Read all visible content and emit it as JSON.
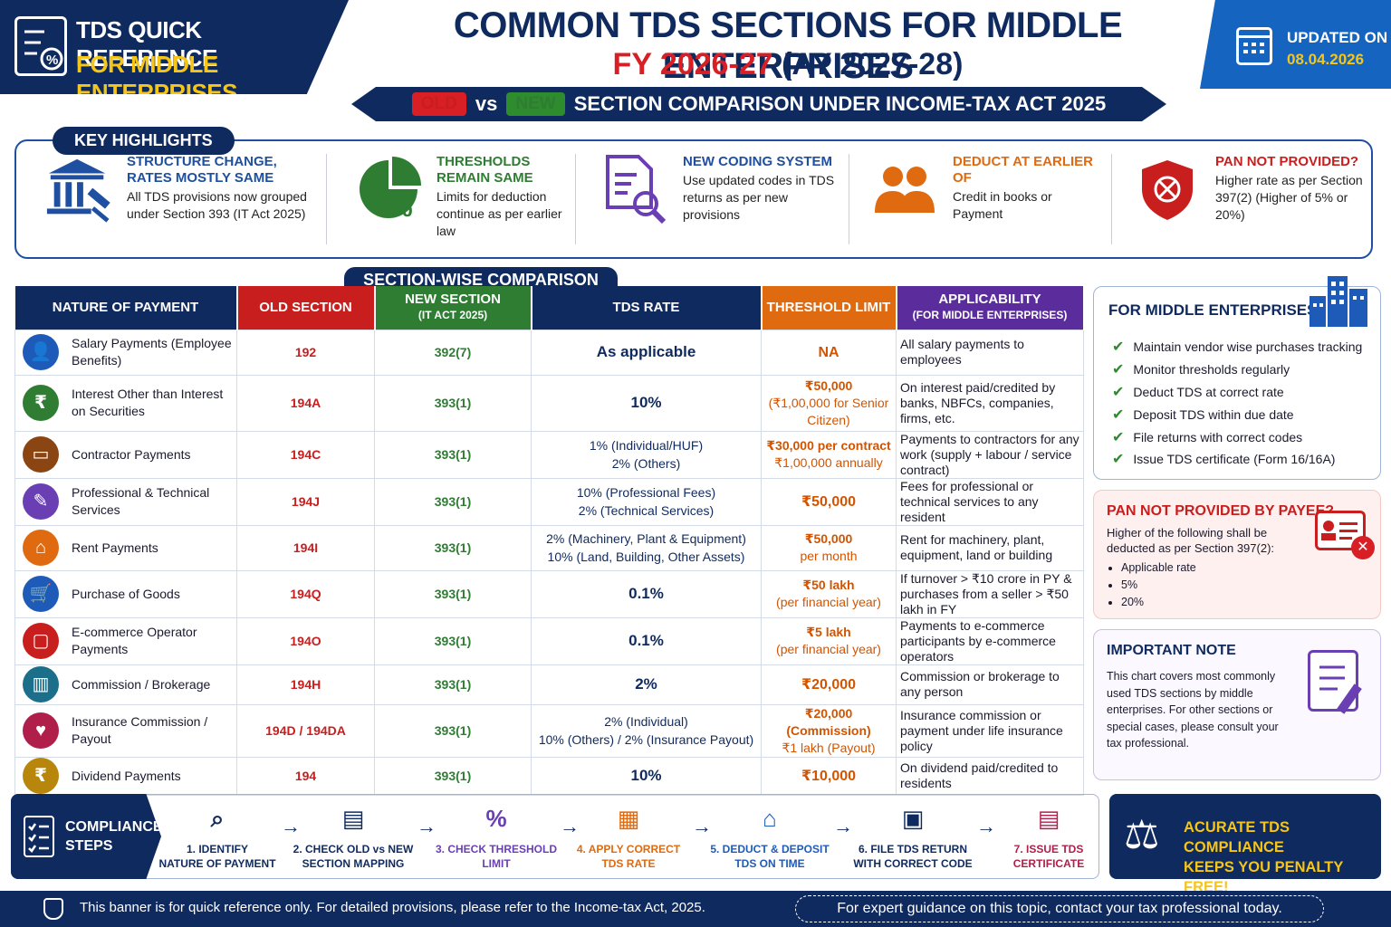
{
  "header": {
    "badge_line1": "TDS QUICK REFERENCE",
    "badge_line2": "FOR MIDDLE ENTERPRISES",
    "title": "COMMON TDS SECTIONS FOR MIDDLE ENTERPRISES",
    "fy": "FY 2026-27",
    "ay": "(AY 2027-28)",
    "old_tag": "OLD",
    "vs": "vs",
    "new_tag": "NEW",
    "comparison": "SECTION COMPARISON UNDER INCOME-TAX ACT 2025",
    "updated_label": "UPDATED ON",
    "updated_date": "08.04.2026"
  },
  "highlights": {
    "title": "KEY HIGHLIGHTS",
    "items": [
      {
        "icon": "courthouse-gavel-icon",
        "title": "STRUCTURE CHANGE, RATES MOSTLY SAME",
        "desc": "All TDS provisions now grouped under Section 393 (IT Act 2025)",
        "color": "#1e4fa0"
      },
      {
        "icon": "pie-percent-icon",
        "title": "THRESHOLDS REMAIN SAME",
        "desc": "Limits for deduction continue as per earlier law",
        "color": "#2e7d32"
      },
      {
        "icon": "document-search-icon",
        "title": "NEW CODING SYSTEM",
        "desc": "Use updated codes in TDS returns as per new provisions",
        "color": "#1e4fa0"
      },
      {
        "icon": "users-icon",
        "title": "DEDUCT AT EARLIER OF",
        "desc": "Credit in books or Payment",
        "color": "#e06a10"
      },
      {
        "icon": "shield-badge-icon",
        "title": "PAN NOT PROVIDED?",
        "desc": "Higher rate as per Section 397(2) (Higher of 5% or 20%)",
        "color": "#c81e1e"
      }
    ]
  },
  "table": {
    "title": "SECTION-WISE COMPARISON",
    "headers": {
      "nature": "NATURE OF PAYMENT",
      "old": "OLD SECTION",
      "new": "NEW SECTION",
      "new_sub": "(IT ACT 2025)",
      "rate": "TDS RATE",
      "threshold": "THRESHOLD LIMIT",
      "app": "APPLICABILITY",
      "app_sub": "(FOR MIDDLE ENTERPRISES)"
    },
    "rows": [
      {
        "icon": "employee-icon",
        "color": "#1e5bb8",
        "nature": "Salary Payments (Employee Benefits)",
        "old": "192",
        "new": "392(7)",
        "rate1": "As applicable",
        "rate2": "",
        "thr1": "NA",
        "thr2": "",
        "app": "All salary payments to employees"
      },
      {
        "icon": "rupee-hand-icon",
        "color": "#2e7d32",
        "nature": "Interest Other than Interest on Securities",
        "old": "194A",
        "new": "393(1)",
        "rate1": "10%",
        "rate2": "",
        "thr1": "₹50,000",
        "thr2": "(₹1,00,000 for Senior Citizen)",
        "app": "On interest paid/credited by banks, NBFCs, companies, firms, etc."
      },
      {
        "icon": "briefcase-icon",
        "color": "#8b4513",
        "nature": "Contractor Payments",
        "old": "194C",
        "new": "393(1)",
        "rate1": "1% (Individual/HUF)",
        "rate2": "2% (Others)",
        "thr1": "₹30,000 per contract",
        "thr2": "₹1,00,000 annually",
        "app": "Payments to contractors for any work (supply + labour / service contract)"
      },
      {
        "icon": "professional-icon",
        "color": "#6a3fb4",
        "nature": "Professional & Technical Services",
        "old": "194J",
        "new": "393(1)",
        "rate1": "10% (Professional Fees)",
        "rate2": "2% (Technical Services)",
        "thr1": "₹50,000",
        "thr2": "",
        "app": "Fees for professional or technical services to any resident"
      },
      {
        "icon": "house-icon",
        "color": "#e06a10",
        "nature": "Rent Payments",
        "old": "194I",
        "new": "393(1)",
        "rate1": "2% (Machinery, Plant & Equipment)",
        "rate2": "10% (Land, Building, Other Assets)",
        "thr1": "₹50,000",
        "thr2": "per month",
        "app": "Rent for machinery, plant, equipment, land or building"
      },
      {
        "icon": "cart-icon",
        "color": "#1e5bb8",
        "nature": "Purchase of Goods",
        "old": "194Q",
        "new": "393(1)",
        "rate1": "0.1%",
        "rate2": "",
        "thr1": "₹50 lakh",
        "thr2": "(per financial year)",
        "app": "If turnover > ₹10 crore in PY & purchases from a seller > ₹50 lakh in FY"
      },
      {
        "icon": "shopping-bag-icon",
        "color": "#c81e1e",
        "nature": "E-commerce Operator Payments",
        "old": "194O",
        "new": "393(1)",
        "rate1": "0.1%",
        "rate2": "",
        "thr1": "₹5 lakh",
        "thr2": "(per financial year)",
        "app": "Payments to e-commerce participants by e-commerce operators"
      },
      {
        "icon": "bar-chart-icon",
        "color": "#1b6f8a",
        "nature": "Commission / Brokerage",
        "old": "194H",
        "new": "393(1)",
        "rate1": "2%",
        "rate2": "",
        "thr1": "₹20,000",
        "thr2": "",
        "app": "Commission or brokerage to any person"
      },
      {
        "icon": "shield-heart-icon",
        "color": "#b01e4a",
        "nature": "Insurance Commission / Payout",
        "old": "194D / 194DA",
        "new": "393(1)",
        "rate1": "2% (Individual)",
        "rate2": "10% (Others) / 2% (Insurance Payout)",
        "thr1": "₹20,000 (Commission)",
        "thr2": "₹1 lakh (Payout)",
        "app": "Insurance commission or payment under life insurance policy"
      },
      {
        "icon": "rupee-coin-icon",
        "color": "#b8860b",
        "nature": "Dividend Payments",
        "old": "194",
        "new": "393(1)",
        "rate1": "10%",
        "rate2": "",
        "thr1": "₹10,000",
        "thr2": "",
        "app": "On dividend paid/credited to residents"
      }
    ]
  },
  "panels": {
    "middle": {
      "title": "FOR MIDDLE ENTERPRISES",
      "items": [
        "Maintain vendor wise purchases tracking",
        "Monitor thresholds regularly",
        "Deduct TDS at correct rate",
        "Deposit TDS within due date",
        "File returns with correct codes",
        "Issue TDS certificate (Form 16/16A)"
      ]
    },
    "pan": {
      "title": "PAN NOT PROVIDED BY PAYEE?",
      "desc": "Higher of the following shall be deducted as per Section 397(2):",
      "items": [
        "Applicable rate",
        "5%",
        "20%"
      ]
    },
    "note": {
      "title": "IMPORTANT NOTE",
      "desc": "This chart covers most commonly used TDS sections by middle enterprises. For other sections or special cases, please consult your tax professional."
    }
  },
  "steps": {
    "title1": "COMPLIANCE",
    "title2": "STEPS",
    "items": [
      {
        "icon": "magnifier-icon",
        "l1": "1. IDENTIFY",
        "l2": "NATURE OF PAYMENT",
        "color": "#0f2a5e",
        "glyph": "⌕"
      },
      {
        "icon": "document-check-icon",
        "l1": "2. CHECK OLD vs NEW",
        "l2": "SECTION MAPPING",
        "color": "#0f2a5e",
        "glyph": "▤"
      },
      {
        "icon": "percent-circle-icon",
        "l1": "3. CHECK THRESHOLD",
        "l2": "LIMIT",
        "color": "#6a3fb4",
        "glyph": "%"
      },
      {
        "icon": "calculator-icon",
        "l1": "4. APPLY CORRECT",
        "l2": "TDS RATE",
        "color": "#e06a10",
        "glyph": "▦"
      },
      {
        "icon": "bank-icon",
        "l1": "5. DEDUCT & DEPOSIT",
        "l2": "TDS ON TIME",
        "color": "#1e5bb8",
        "glyph": "⌂"
      },
      {
        "icon": "monitor-code-icon",
        "l1": "6. FILE TDS RETURN",
        "l2": "WITH CORRECT CODE",
        "color": "#0f2a5e",
        "glyph": "▣"
      },
      {
        "icon": "certificate-icon",
        "l1": "7. ISSUE TDS",
        "l2": "CERTIFICATE",
        "color": "#b01e4a",
        "glyph": "▤"
      }
    ]
  },
  "accurate": {
    "l1": "ACURATE TDS COMPLIANCE",
    "l2": "KEEPS YOU PENALTY FREE!",
    "icon": "scales-icon"
  },
  "footer": {
    "left": "This banner is for quick reference only. For detailed provisions, please refer to the Income-tax Act, 2025.",
    "right": "For expert guidance on this topic, contact your tax professional today."
  }
}
